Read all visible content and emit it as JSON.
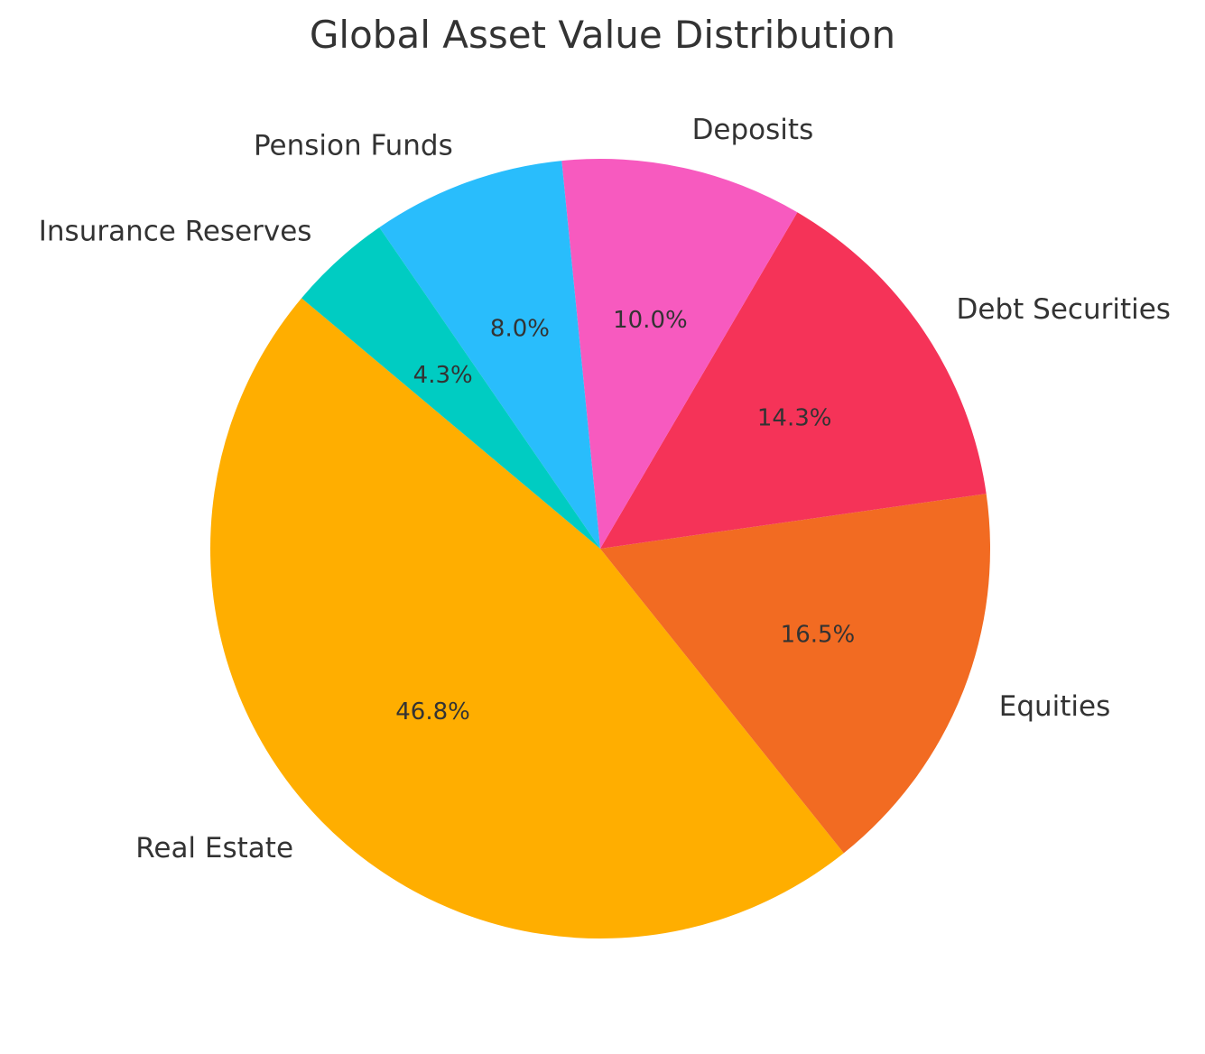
{
  "chart_data": {
    "type": "pie",
    "title": "Global Asset Value Distribution",
    "categories": [
      "Real Estate",
      "Equities",
      "Debt Securities",
      "Deposits",
      "Pension Funds",
      "Insurance Reserves"
    ],
    "values": [
      46.8,
      16.5,
      14.3,
      10.0,
      8.0,
      4.3
    ],
    "value_labels": [
      "46.8%",
      "16.5%",
      "14.3%",
      "10.0%",
      "8.0%",
      "4.3%"
    ],
    "colors": [
      "#FFAE00",
      "#F26B22",
      "#F53358",
      "#F75ABF",
      "#29BDFC",
      "#00CCC2"
    ],
    "start_angle_deg": 140,
    "direction": "counterclockwise",
    "legend": "none"
  }
}
